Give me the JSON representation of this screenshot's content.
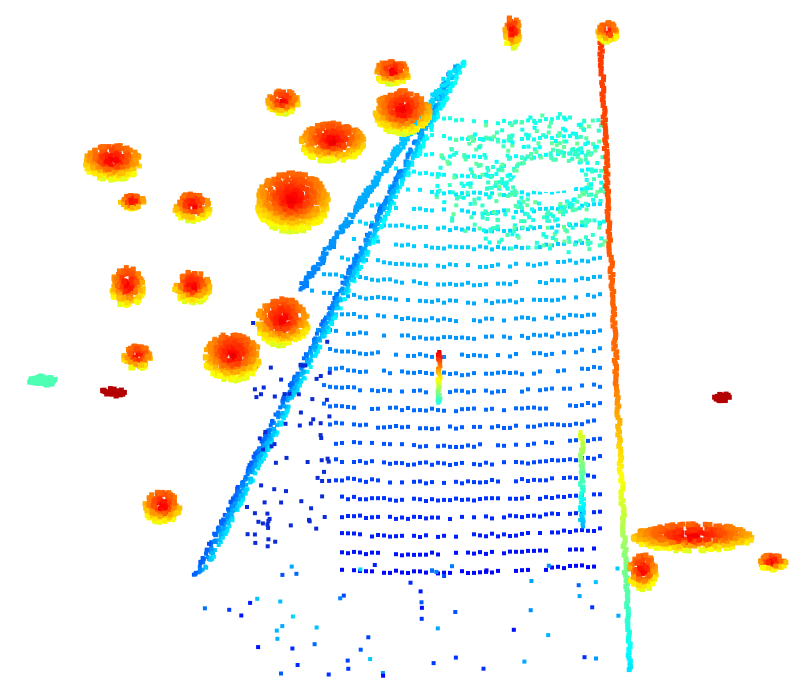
{
  "scene": {
    "kind": "lidar-point-cloud-top-view",
    "background": "#ffffff",
    "colormap": "jet",
    "palette": {
      "ground_far": "#0b2bd6",
      "ground_mid": "#1aa6e6",
      "ground_near": "#2fe0d8",
      "low": "#3cf0b0",
      "mid": "#e6e61a",
      "high": "#ff7a1a",
      "top": "#e60a0a",
      "peak": "#9a0000"
    },
    "elements": [
      "road-surface",
      "left-wall",
      "right-pole-line",
      "tree-clusters",
      "sensor-blind-spot"
    ]
  }
}
